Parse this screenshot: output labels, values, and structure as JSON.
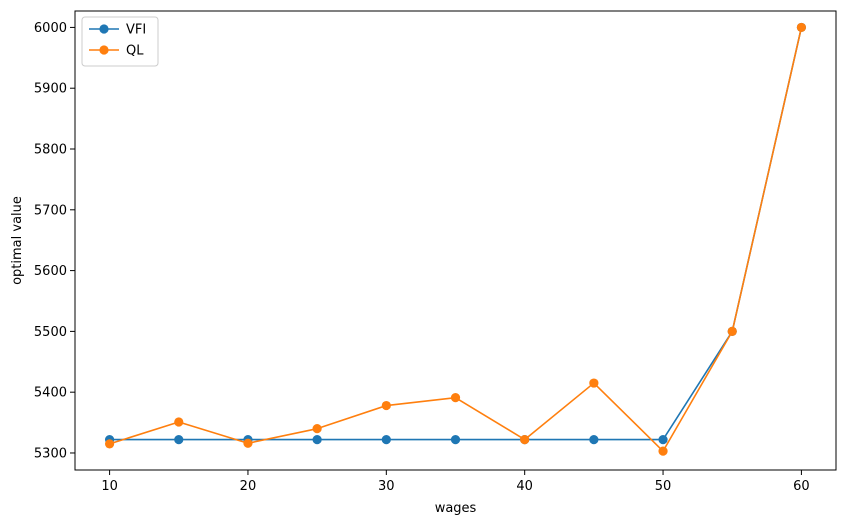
{
  "chart_data": {
    "type": "line",
    "title": "",
    "xlabel": "wages",
    "ylabel": "optimal value",
    "xlim": [
      7.5,
      62.5
    ],
    "ylim": [
      5272,
      6027
    ],
    "x_ticks": [
      10,
      20,
      30,
      40,
      50,
      60
    ],
    "y_ticks": [
      5300,
      5400,
      5500,
      5600,
      5700,
      5800,
      5900,
      6000
    ],
    "x": [
      10,
      15,
      20,
      25,
      30,
      35,
      40,
      45,
      50,
      55,
      60
    ],
    "grid": false,
    "legend_position": "top-left",
    "series": [
      {
        "name": "VFI",
        "color": "#1f77b4",
        "marker": "circle",
        "values": [
          5322,
          5322,
          5322,
          5322,
          5322,
          5322,
          5322,
          5322,
          5322,
          5500,
          6000
        ]
      },
      {
        "name": "QL",
        "color": "#ff7f0e",
        "marker": "circle",
        "values": [
          5315,
          5351,
          5316,
          5340,
          5378,
          5391,
          5322,
          5415,
          5303,
          5500,
          6000
        ]
      }
    ]
  }
}
